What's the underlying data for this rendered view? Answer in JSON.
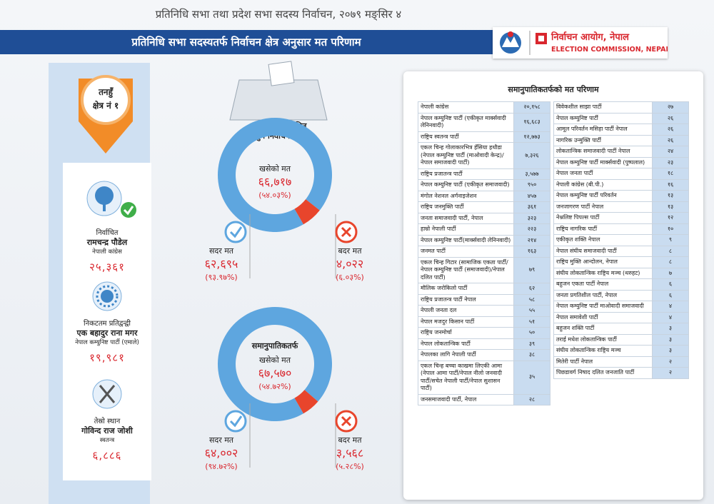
{
  "header": {
    "title": "प्रतिनिधि सभा तथा प्रदेश सभा सदस्य निर्वाचन, २०७९ मङ्सिर ४",
    "banner": "प्रतिनिधि सभा सदस्यतर्फ निर्वाचन क्षेत्र अनुसार मत परिणाम",
    "logo_np": "निर्वाचन आयोग, नेपाल",
    "logo_en": "ELECTION COMMISSION, NEPAL"
  },
  "constituency": {
    "district": "तनहुँ",
    "number": "क्षेत्र नं १"
  },
  "candidates": [
    {
      "status": "निर्वाचित",
      "name": "रामचन्द्र पौडेल",
      "party": "नेपाली कांग्रेस",
      "votes": "२५,३६१"
    },
    {
      "status": "निकटतम प्रतिद्वन्द्वी",
      "name": "एक बहादुर राना मगर",
      "party": "नेपाल कम्युनिष्ट पार्टी (एमाले)",
      "votes": "१९,९८१"
    },
    {
      "status": "तेस्रो स्थान",
      "name": "गोविन्द राज जोशी",
      "party": "स्वतन्त्र",
      "votes": "६,८८६"
    }
  ],
  "fptp": {
    "ballot_label": [
      "पहिलो हुने निर्वाचित",
      "हुने निर्वाचनतर्फ"
    ],
    "cast_label": "खसेको मत",
    "cast": "६६,७१७",
    "cast_pct": "(५४.०३%)",
    "valid_label": "सदर मत",
    "valid": "६२,६९५",
    "valid_pct": "(९३.९७%)",
    "invalid_label": "बदर मत",
    "invalid": "४,०२२",
    "invalid_pct": "(६.०३%)"
  },
  "pr": {
    "title": "समानुपातिकतर्फ",
    "cast_label": "खसेको मत",
    "cast": "६७,५७०",
    "cast_pct": "(५४.७२%)",
    "valid_label": "सदर मत",
    "valid": "६४,००२",
    "valid_pct": "(९४.७२%)",
    "invalid_label": "बदर मत",
    "invalid": "३,५६८",
    "invalid_pct": "(५.२८%)"
  },
  "table": {
    "title": "समानुपातिकतर्फको मत परिणाम",
    "left": [
      [
        "नेपाली कांग्रेस",
        "२०,१५८"
      ],
      [
        "नेपाल कम्युनिष्ट पार्टी (एकीकृत मार्क्सवादी लेनिनवादी)",
        "१६,६८३"
      ],
      [
        "राष्ट्रिय स्वतन्त्र पार्टी",
        "१२,७७३"
      ],
      [
        "एकल चिन्ह गोलाकारभित्र हँसिया हथौडा (नेपाल कम्युनिष्ट पार्टी (माओवादी केन्द्र)/नेपाल समाजवादी पार्टी)",
        "७,३२६"
      ],
      [
        "राष्ट्रिय प्रजातन्त्र पार्टी",
        "३,५७७"
      ],
      [
        "नेपाल कम्युनिष्ट पार्टी (एकीकृत समाजवादी)",
        "९५०"
      ],
      [
        "मंगोल नेशनल अर्गनाइजेशन",
        "४५७"
      ],
      [
        "राष्ट्रिय जनमुक्ति पार्टी",
        "३६१"
      ],
      [
        "जनता समाजवादी पार्टी, नेपाल",
        "३२३"
      ],
      [
        "हाम्रो नेपाली पार्टी",
        "२२३"
      ],
      [
        "नेपाल कम्युनिष्ट पार्टी(मार्क्सवादी लेनिनवादी)",
        "२१४"
      ],
      [
        "जनमत पार्टी",
        "१६३"
      ],
      [
        "एकल चिन्ह गिटार (सामाजिक एकता पार्टी/नेपाल कम्युनिष्ट पार्टी (समाजवादी)/नेपाल दलित पार्टी)",
        "७९"
      ],
      [
        "मौलिक जरोकिलो पार्टी",
        "६२"
      ],
      [
        "राष्ट्रिय प्रजातन्त्र पार्टी नेपाल",
        "५८"
      ],
      [
        "नेपाली जनता दल",
        "५५"
      ],
      [
        "नेपाल मजदुर किसान पार्टी",
        "५१"
      ],
      [
        "राष्ट्रिय जनमोर्चा",
        "५०"
      ],
      [
        "नेपाल लोकतान्त्रिक पार्टी",
        "३९"
      ],
      [
        "नेपालका लागि नेपाली पार्टी",
        "३८"
      ],
      [
        "एकल चिन्ह बच्चा काखमा लिएकी आमा (नेपाल आमा पार्टी/नेपाल नीलो जनवादी पार्टी/सचेत नेपाली पार्टी/नेपाल सुशासन पार्टी)",
        "३५"
      ],
      [
        "जनसमाजवादी पार्टी, नेपाल",
        "२८"
      ]
    ],
    "right": [
      [
        "विवेकशील साझा पार्टी",
        "२७"
      ],
      [
        "नेपाल कम्युनिष्ट पार्टी",
        "२६"
      ],
      [
        "आमूल परिवर्तन मसिहा पार्टी नेपाल",
        "२६"
      ],
      [
        "नागरिक उन्मुक्ति पार्टी",
        "२६"
      ],
      [
        "लोकतान्त्रिक समाजवादी पार्टी नेपाल",
        "२४"
      ],
      [
        "नेपाल कम्युनिष्ट पार्टी मार्क्सवादी (पुष्पलाल)",
        "२३"
      ],
      [
        "नेपाल जनता पार्टी",
        "१८"
      ],
      [
        "नेपाली कांग्रेस (बी.पी.)",
        "१६"
      ],
      [
        "नेपाल कम्युनिष्ट पार्टी परिवर्तन",
        "१३"
      ],
      [
        "जनजागरण पार्टी नेपाल",
        "१३"
      ],
      [
        "नेश्नलिष्ट पिपल्स पार्टी",
        "१२"
      ],
      [
        "राष्ट्रिय नागरिक पार्टी",
        "१०"
      ],
      [
        "एकीकृत शक्ति नेपाल",
        "९"
      ],
      [
        "नेपाल संघीय समाजवादी पार्टी",
        "८"
      ],
      [
        "राष्ट्रिय मुक्ति आन्दोलन, नेपाल",
        "८"
      ],
      [
        "संघीय लोकतान्त्रिक राष्ट्रिय मञ्च (थरुहट)",
        "७"
      ],
      [
        "बहुजन एकता पार्टी नेपाल",
        "६"
      ],
      [
        "जनता प्रगतिशील पार्टी, नेपाल",
        "६"
      ],
      [
        "नेपाल कम्युनिष्ट पार्टी माओवादी समाजवादी",
        "४"
      ],
      [
        "नेपाल समावेशी पार्टी",
        "४"
      ],
      [
        "बहुजन शक्ति पार्टी",
        "३"
      ],
      [
        "तराई मधेश लोकतान्त्रिक पार्टी",
        "३"
      ],
      [
        "संघीय लोकतान्त्रिक राष्ट्रिय मञ्च",
        "३"
      ],
      [
        "मितेरी पार्टी नेपाल",
        "२"
      ],
      [
        "पिछडावर्ग निषाद दलित जनजाति पार्टी",
        "२"
      ]
    ]
  }
}
